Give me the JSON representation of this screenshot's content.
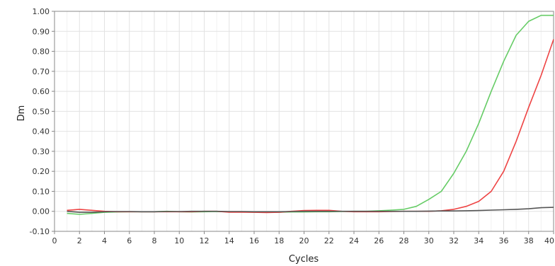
{
  "chart_data": {
    "type": "line",
    "xlabel": "Cycles",
    "ylabel": "Dm",
    "xlim": [
      0,
      40
    ],
    "ylim": [
      -0.1,
      1.0
    ],
    "xticks": [
      0,
      2,
      4,
      6,
      8,
      10,
      12,
      14,
      16,
      18,
      20,
      22,
      24,
      26,
      28,
      30,
      32,
      34,
      36,
      38,
      40
    ],
    "xtick_labels": [
      "0",
      "2",
      "4",
      "6",
      "8",
      "10",
      "12",
      "14",
      "16",
      "18",
      "20",
      "22",
      "24",
      "26",
      "28",
      "30",
      "32",
      "34",
      "36",
      "38",
      "40"
    ],
    "yticks": [
      -0.1,
      0.0,
      0.1,
      0.2,
      0.3,
      0.4,
      0.5,
      0.6,
      0.7,
      0.8,
      0.9,
      1.0
    ],
    "ytick_labels": [
      "-0.10",
      "0.00",
      "0.10",
      "0.20",
      "0.30",
      "0.40",
      "0.50",
      "0.60",
      "0.70",
      "0.80",
      "0.90",
      "1.00"
    ],
    "grid": true,
    "colors": {
      "green": "#66cc66",
      "red": "#ee4444",
      "dark": "#555555",
      "grid": "#e2e2e2",
      "axis": "#888888"
    },
    "series": [
      {
        "color": "#66cc66",
        "x": [
          1,
          2,
          3,
          4,
          5,
          6,
          7,
          8,
          9,
          10,
          11,
          12,
          13,
          14,
          15,
          16,
          17,
          18,
          19,
          20,
          21,
          22,
          23,
          24,
          25,
          26,
          27,
          28,
          29,
          30,
          31,
          32,
          33,
          34,
          35,
          36,
          37,
          38,
          39,
          40
        ],
        "y": [
          -0.01,
          -0.015,
          -0.01,
          -0.005,
          -0.003,
          -0.002,
          -0.002,
          -0.002,
          0.0,
          -0.002,
          -0.003,
          -0.002,
          -0.001,
          -0.002,
          -0.003,
          -0.004,
          -0.005,
          -0.004,
          -0.003,
          -0.003,
          -0.002,
          -0.002,
          -0.001,
          0.0,
          0.0,
          0.003,
          0.006,
          0.01,
          0.025,
          0.06,
          0.1,
          0.19,
          0.3,
          0.44,
          0.6,
          0.75,
          0.88,
          0.95,
          0.98,
          0.98
        ]
      },
      {
        "color": "#ee4444",
        "x": [
          1,
          2,
          3,
          4,
          5,
          6,
          7,
          8,
          9,
          10,
          11,
          12,
          13,
          14,
          15,
          16,
          17,
          18,
          19,
          20,
          21,
          22,
          23,
          24,
          25,
          26,
          27,
          28,
          29,
          30,
          31,
          32,
          33,
          34,
          35,
          36,
          37,
          38,
          39,
          40
        ],
        "y": [
          0.005,
          0.01,
          0.005,
          0.0,
          -0.002,
          -0.002,
          -0.002,
          -0.002,
          -0.002,
          -0.002,
          -0.002,
          0.0,
          0.0,
          -0.004,
          -0.004,
          -0.005,
          -0.006,
          -0.005,
          0.0,
          0.004,
          0.005,
          0.005,
          0.0,
          -0.002,
          -0.002,
          -0.002,
          -0.001,
          0.0,
          0.0,
          0.0,
          0.003,
          0.01,
          0.025,
          0.05,
          0.1,
          0.2,
          0.35,
          0.52,
          0.68,
          0.86
        ]
      },
      {
        "color": "#555555",
        "x": [
          1,
          2,
          3,
          4,
          5,
          6,
          7,
          8,
          9,
          10,
          11,
          12,
          13,
          14,
          15,
          16,
          17,
          18,
          19,
          20,
          21,
          22,
          23,
          24,
          25,
          26,
          27,
          28,
          29,
          30,
          31,
          32,
          33,
          34,
          35,
          36,
          37,
          38,
          39,
          40
        ],
        "y": [
          0.0,
          -0.005,
          -0.005,
          -0.002,
          -0.001,
          -0.001,
          -0.002,
          -0.002,
          -0.001,
          -0.001,
          0.0,
          0.0,
          0.0,
          -0.001,
          -0.001,
          -0.002,
          -0.002,
          -0.002,
          -0.001,
          0.0,
          0.0,
          0.0,
          0.0,
          0.0,
          0.0,
          0.0,
          0.0,
          0.0,
          0.0,
          0.001,
          0.002,
          0.002,
          0.003,
          0.004,
          0.006,
          0.008,
          0.01,
          0.013,
          0.018,
          0.02
        ]
      }
    ]
  }
}
